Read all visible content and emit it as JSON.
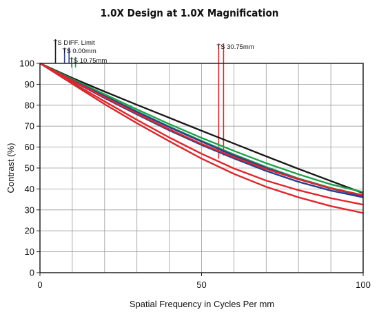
{
  "chart_data": {
    "type": "line",
    "title": "1.0X Design at 1.0X Magnification",
    "xlabel": "Spatial Frequency in Cycles Per mm",
    "ylabel": "Contrast (%)",
    "xlim": [
      0,
      100
    ],
    "ylim": [
      0,
      100
    ],
    "xticks": [
      0,
      50,
      100
    ],
    "yticks": [
      0,
      10,
      20,
      30,
      40,
      50,
      60,
      70,
      80,
      90,
      100
    ],
    "x_grid_step": 10,
    "grid": true,
    "legend": "none",
    "colors": {
      "black": "#1a1a1a",
      "blue": "#2a3f8f",
      "green": "#1fa04a",
      "red": "#e0262b",
      "grid": "#9a9a9a",
      "frame": "#222222"
    },
    "series": [
      {
        "color": "black",
        "x": [
          0,
          10,
          20,
          30,
          40,
          50,
          60,
          70,
          80,
          90,
          100
        ],
        "y": [
          100,
          93,
          86.5,
          80.2,
          74,
          67.8,
          61.7,
          55.6,
          49.6,
          43.8,
          38
        ]
      },
      {
        "color": "green",
        "x": [
          0,
          10,
          20,
          30,
          40,
          50,
          60,
          70,
          80,
          90,
          100
        ],
        "y": [
          100,
          92.5,
          85.2,
          78,
          71,
          64.4,
          58.2,
          52.3,
          47,
          42.2,
          38.5
        ]
      },
      {
        "color": "green",
        "x": [
          0,
          10,
          20,
          30,
          40,
          50,
          60,
          70,
          80,
          90,
          100
        ],
        "y": [
          100,
          92.2,
          84.5,
          77,
          69.8,
          63,
          56.5,
          50.5,
          45,
          40.5,
          37
        ]
      },
      {
        "color": "blue",
        "x": [
          0,
          10,
          20,
          30,
          40,
          50,
          60,
          70,
          80,
          90,
          100
        ],
        "y": [
          100,
          92,
          84.3,
          76.8,
          69.5,
          62.6,
          56,
          50,
          44.7,
          40.2,
          36.6
        ]
      },
      {
        "color": "blue",
        "x": [
          0,
          10,
          20,
          30,
          40,
          50,
          60,
          70,
          80,
          90,
          100
        ],
        "y": [
          100,
          91.6,
          83.4,
          75.6,
          68,
          61,
          54.6,
          48.6,
          43.4,
          39.2,
          36
        ]
      },
      {
        "color": "red",
        "x": [
          0,
          10,
          20,
          30,
          40,
          50,
          60,
          70,
          80,
          90,
          100
        ],
        "y": [
          100,
          91.8,
          83.8,
          76,
          68.5,
          61.5,
          55.2,
          49.5,
          44.6,
          40.3,
          37
        ]
      },
      {
        "color": "red",
        "x": [
          0,
          10,
          20,
          30,
          40,
          50,
          60,
          70,
          80,
          90,
          100
        ],
        "y": [
          100,
          90.8,
          81.8,
          73,
          64.6,
          56.8,
          49.8,
          44,
          39.4,
          35.6,
          32.5
        ]
      },
      {
        "color": "red",
        "x": [
          0,
          10,
          20,
          30,
          40,
          50,
          60,
          70,
          80,
          90,
          100
        ],
        "y": [
          100,
          90.2,
          80.5,
          71.4,
          62.8,
          54.5,
          47.2,
          41,
          36,
          31.8,
          28.5
        ]
      }
    ],
    "annotations": [
      {
        "text": "TS DIFF. Limit",
        "markers": [
          {
            "x": 4.8,
            "y_top": 111.5,
            "y_bottom": 100,
            "color": "black"
          }
        ]
      },
      {
        "text": "TS 0.00mm",
        "markers": [
          {
            "x": 7.6,
            "y_top": 107.5,
            "y_bottom": 100,
            "color": "blue"
          },
          {
            "x": 9.0,
            "y_top": 107.5,
            "y_bottom": 100,
            "color": "blue"
          }
        ]
      },
      {
        "text": "TS 10.75mm",
        "markers": [
          {
            "x": 9.8,
            "y_top": 103,
            "y_bottom": 98,
            "color": "green"
          },
          {
            "x": 11.0,
            "y_top": 103,
            "y_bottom": 98,
            "color": "green"
          }
        ]
      },
      {
        "text": "TS 30.75mm",
        "markers": [
          {
            "x": 55.3,
            "y_top": 109.5,
            "y_bottom": 54.5,
            "color": "red"
          },
          {
            "x": 56.8,
            "y_top": 109.5,
            "y_bottom": 56,
            "color": "red"
          }
        ]
      }
    ]
  }
}
